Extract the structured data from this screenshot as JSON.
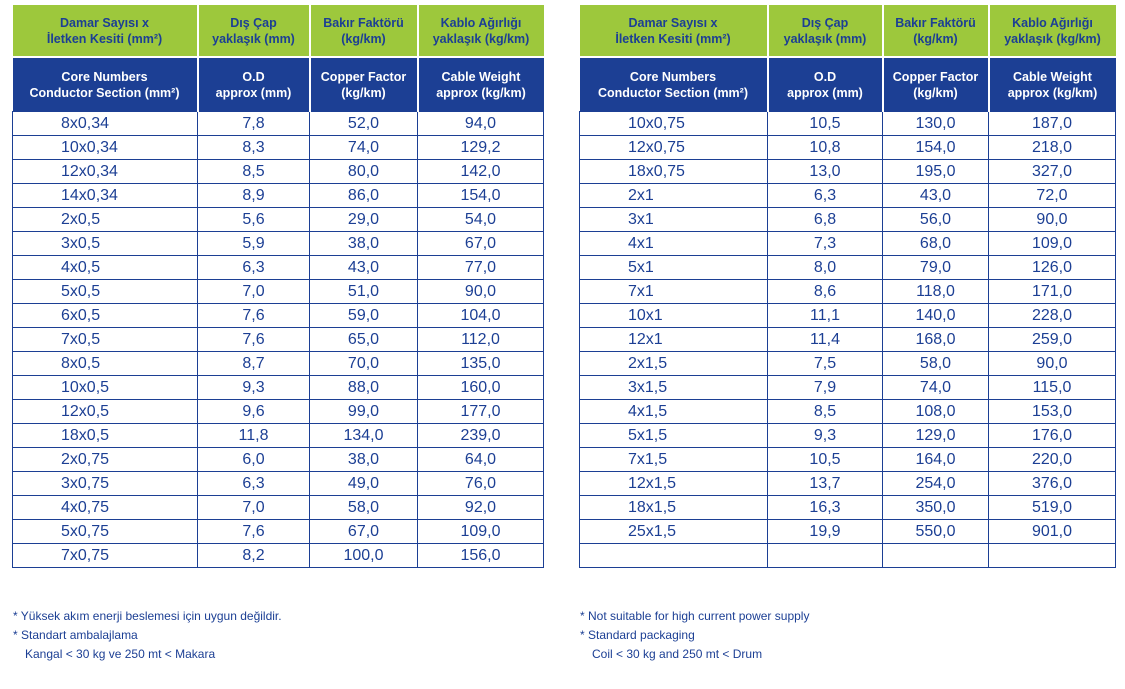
{
  "tables": [
    {
      "headers_tr": [
        [
          "Damar Sayısı x",
          "İletken Kesiti (mm²)"
        ],
        [
          "Dış Çap",
          "yaklaşık (mm)"
        ],
        [
          "Bakır Faktörü",
          "(kg/km)"
        ],
        [
          "Kablo Ağırlığı",
          "yaklaşık (kg/km)"
        ]
      ],
      "headers_en": [
        [
          "Core Numbers",
          "Conductor Section (mm²)"
        ],
        [
          "O.D",
          "approx (mm)"
        ],
        [
          "Copper Factor",
          "(kg/km)"
        ],
        [
          "Cable Weight",
          "approx (kg/km)"
        ]
      ],
      "rows": [
        [
          "8x0,34",
          "7,8",
          "52,0",
          "94,0"
        ],
        [
          "10x0,34",
          "8,3",
          "74,0",
          "129,2"
        ],
        [
          "12x0,34",
          "8,5",
          "80,0",
          "142,0"
        ],
        [
          "14x0,34",
          "8,9",
          "86,0",
          "154,0"
        ],
        [
          "2x0,5",
          "5,6",
          "29,0",
          "54,0"
        ],
        [
          "3x0,5",
          "5,9",
          "38,0",
          "67,0"
        ],
        [
          "4x0,5",
          "6,3",
          "43,0",
          "77,0"
        ],
        [
          "5x0,5",
          "7,0",
          "51,0",
          "90,0"
        ],
        [
          "6x0,5",
          "7,6",
          "59,0",
          "104,0"
        ],
        [
          "7x0,5",
          "7,6",
          "65,0",
          "112,0"
        ],
        [
          "8x0,5",
          "8,7",
          "70,0",
          "135,0"
        ],
        [
          "10x0,5",
          "9,3",
          "88,0",
          "160,0"
        ],
        [
          "12x0,5",
          "9,6",
          "99,0",
          "177,0"
        ],
        [
          "18x0,5",
          "11,8",
          "134,0",
          "239,0"
        ],
        [
          "2x0,75",
          "6,0",
          "38,0",
          "64,0"
        ],
        [
          "3x0,75",
          "6,3",
          "49,0",
          "76,0"
        ],
        [
          "4x0,75",
          "7,0",
          "58,0",
          "92,0"
        ],
        [
          "5x0,75",
          "7,6",
          "67,0",
          "109,0"
        ],
        [
          "7x0,75",
          "8,2",
          "100,0",
          "156,0"
        ]
      ]
    },
    {
      "headers_tr": [
        [
          "Damar Sayısı x",
          "İletken Kesiti (mm²)"
        ],
        [
          "Dış Çap",
          "yaklaşık (mm)"
        ],
        [
          "Bakır Faktörü",
          "(kg/km)"
        ],
        [
          "Kablo Ağırlığı",
          "yaklaşık (kg/km)"
        ]
      ],
      "headers_en": [
        [
          "Core Numbers",
          "Conductor Section (mm²)"
        ],
        [
          "O.D",
          "approx (mm)"
        ],
        [
          "Copper Factor",
          "(kg/km)"
        ],
        [
          "Cable Weight",
          "approx (kg/km)"
        ]
      ],
      "rows": [
        [
          "10x0,75",
          "10,5",
          "130,0",
          "187,0"
        ],
        [
          "12x0,75",
          "10,8",
          "154,0",
          "218,0"
        ],
        [
          "18x0,75",
          "13,0",
          "195,0",
          "327,0"
        ],
        [
          "2x1",
          "6,3",
          "43,0",
          "72,0"
        ],
        [
          "3x1",
          "6,8",
          "56,0",
          "90,0"
        ],
        [
          "4x1",
          "7,3",
          "68,0",
          "109,0"
        ],
        [
          "5x1",
          "8,0",
          "79,0",
          "126,0"
        ],
        [
          "7x1",
          "8,6",
          "118,0",
          "171,0"
        ],
        [
          "10x1",
          "11,1",
          "140,0",
          "228,0"
        ],
        [
          "12x1",
          "11,4",
          "168,0",
          "259,0"
        ],
        [
          "2x1,5",
          "7,5",
          "58,0",
          "90,0"
        ],
        [
          "3x1,5",
          "7,9",
          "74,0",
          "115,0"
        ],
        [
          "4x1,5",
          "8,5",
          "108,0",
          "153,0"
        ],
        [
          "5x1,5",
          "9,3",
          "129,0",
          "176,0"
        ],
        [
          "7x1,5",
          "10,5",
          "164,0",
          "220,0"
        ],
        [
          "12x1,5",
          "13,7",
          "254,0",
          "376,0"
        ],
        [
          "18x1,5",
          "16,3",
          "350,0",
          "519,0"
        ],
        [
          "25x1,5",
          "19,9",
          "550,0",
          "901,0"
        ],
        [
          "",
          "",
          "",
          ""
        ]
      ]
    }
  ],
  "notes_tr": [
    "* Yüksek akım enerji beslemesi için uygun değildir.",
    "* Standart ambalajlama",
    "Kangal < 30 kg ve 250 mt < Makara"
  ],
  "notes_en": [
    "* Not suitable for high current power supply",
    "* Standard packaging",
    "Coil < 30 kg and 250 mt < Drum"
  ],
  "colors": {
    "header_green": "#9dc83c",
    "header_blue": "#1c3f94",
    "text_blue": "#1c3f94",
    "border_blue": "#1c3f94"
  }
}
